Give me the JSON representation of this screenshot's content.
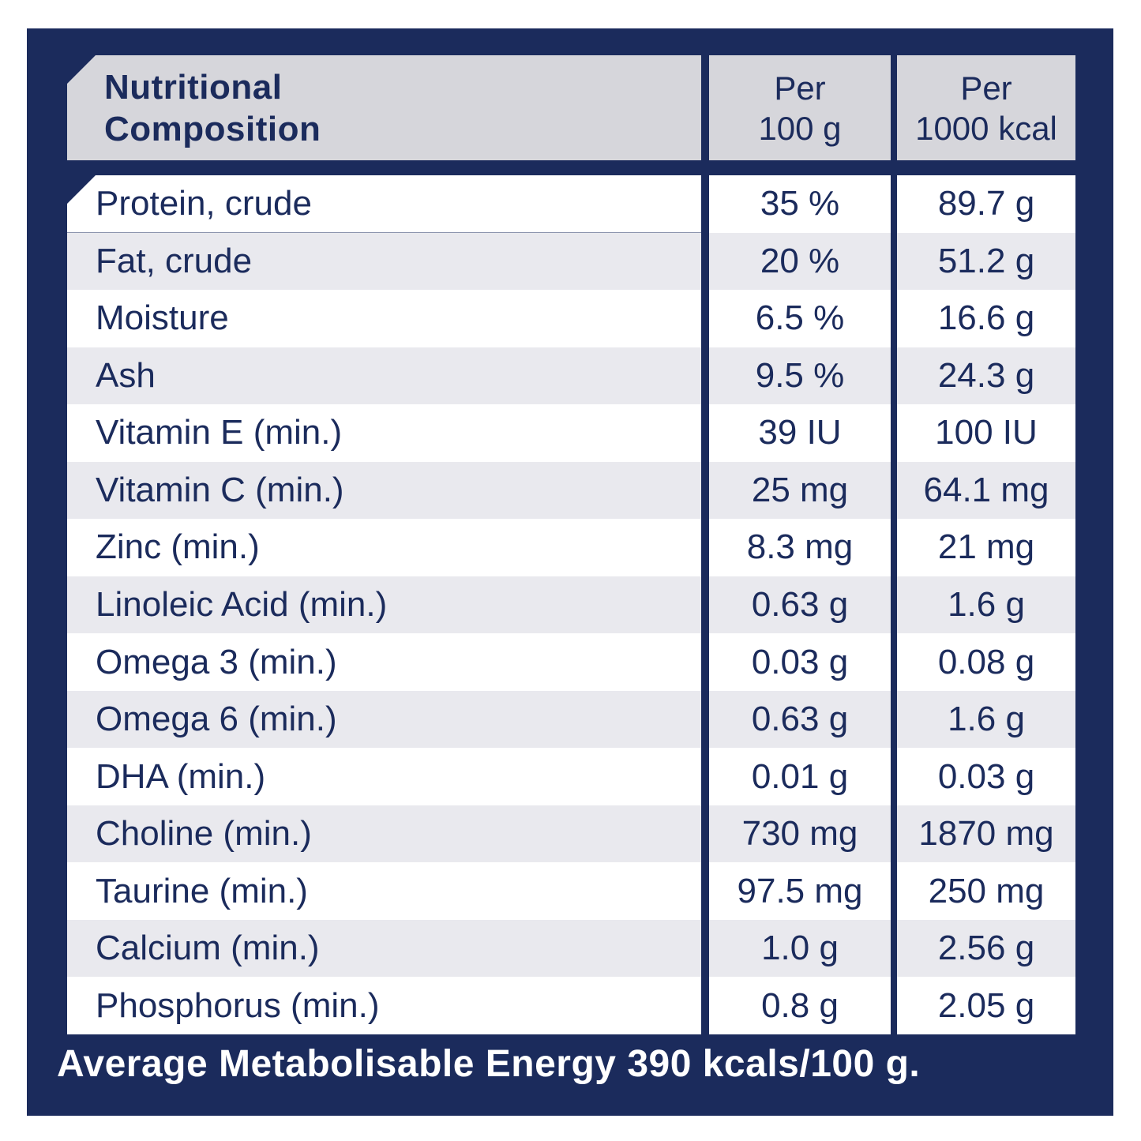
{
  "colors": {
    "navy": "#1b2b5c",
    "header_gray": "#d6d6db",
    "row_stripe_gray": "#e9e9ee",
    "row_white": "#ffffff",
    "text_navy": "#1b2b5c",
    "footer_text": "#ffffff"
  },
  "table": {
    "header": {
      "title_line1": "Nutritional",
      "title_line2": "Composition",
      "per100_line1": "Per",
      "per100_line2": "100 g",
      "per1000_line1": "Per",
      "per1000_line2": "1000 kcal"
    },
    "rows": [
      {
        "label": "Protein, crude",
        "per_100g": "35 %",
        "per_1000kcal": "89.7 g"
      },
      {
        "label": "Fat, crude",
        "per_100g": "20 %",
        "per_1000kcal": "51.2 g"
      },
      {
        "label": "Moisture",
        "per_100g": "6.5 %",
        "per_1000kcal": "16.6 g"
      },
      {
        "label": "Ash",
        "per_100g": "9.5 %",
        "per_1000kcal": "24.3 g"
      },
      {
        "label": "Vitamin E (min.)",
        "per_100g": "39 IU",
        "per_1000kcal": "100 IU"
      },
      {
        "label": "Vitamin C (min.)",
        "per_100g": "25 mg",
        "per_1000kcal": "64.1 mg"
      },
      {
        "label": "Zinc (min.)",
        "per_100g": "8.3 mg",
        "per_1000kcal": "21 mg"
      },
      {
        "label": "Linoleic Acid (min.)",
        "per_100g": "0.63 g",
        "per_1000kcal": "1.6 g"
      },
      {
        "label": "Omega 3 (min.)",
        "per_100g": "0.03 g",
        "per_1000kcal": "0.08 g"
      },
      {
        "label": "Omega 6 (min.)",
        "per_100g": "0.63 g",
        "per_1000kcal": "1.6 g"
      },
      {
        "label": "DHA (min.)",
        "per_100g": "0.01 g",
        "per_1000kcal": "0.03 g"
      },
      {
        "label": "Choline (min.)",
        "per_100g": "730 mg",
        "per_1000kcal": "1870 mg"
      },
      {
        "label": "Taurine (min.)",
        "per_100g": "97.5 mg",
        "per_1000kcal": "250 mg"
      },
      {
        "label": "Calcium (min.)",
        "per_100g": "1.0 g",
        "per_1000kcal": "2.56 g"
      },
      {
        "label": "Phosphorus (min.)",
        "per_100g": "0.8 g",
        "per_1000kcal": "2.05 g"
      }
    ],
    "footer": {
      "text": "Average Metabolisable Energy 390 kcals/100 g."
    }
  }
}
